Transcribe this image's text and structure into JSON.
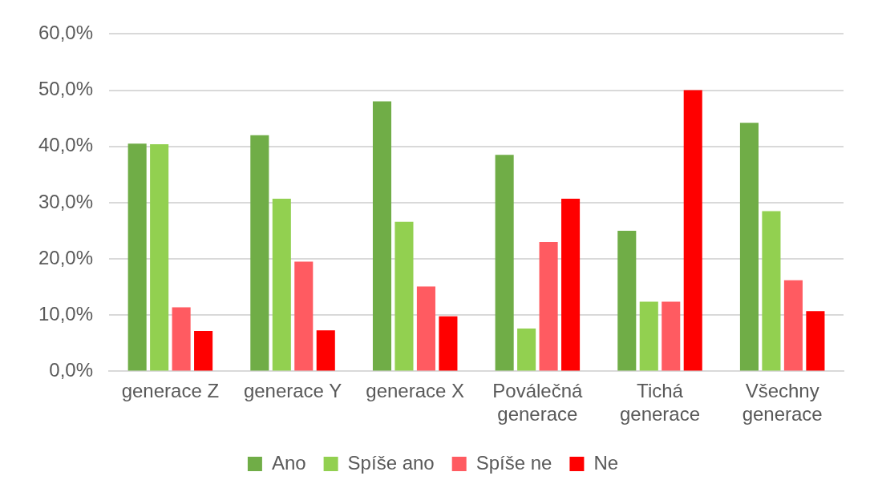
{
  "chart_data": {
    "type": "bar",
    "categories": [
      "generace Z",
      "generace Y",
      "generace X",
      "Poválečná generace",
      "Tichá generace",
      "Všechny generace"
    ],
    "series": [
      {
        "name": "Ano",
        "color": "#70ad47",
        "values": [
          40.5,
          42.0,
          48.0,
          38.5,
          25.0,
          44.2
        ]
      },
      {
        "name": "Spíše ano",
        "color": "#92d050",
        "values": [
          40.4,
          30.7,
          26.6,
          7.6,
          12.4,
          28.5
        ]
      },
      {
        "name": "Spíše ne",
        "color": "#ff5b61",
        "values": [
          11.4,
          19.5,
          15.1,
          23.0,
          12.4,
          16.2
        ]
      },
      {
        "name": "Ne",
        "color": "#ff0000",
        "values": [
          7.2,
          7.3,
          9.8,
          30.7,
          50.0,
          10.7
        ]
      }
    ],
    "ylim": [
      0,
      60
    ],
    "yticks": [
      {
        "value": 0,
        "label": "0,0%"
      },
      {
        "value": 10,
        "label": "10,0%"
      },
      {
        "value": 20,
        "label": "20,0%"
      },
      {
        "value": 30,
        "label": "30,0%"
      },
      {
        "value": 40,
        "label": "40,0%"
      },
      {
        "value": 50,
        "label": "50,0%"
      },
      {
        "value": 60,
        "label": "60,0%"
      }
    ],
    "grid": "y",
    "legend": "bottom"
  }
}
